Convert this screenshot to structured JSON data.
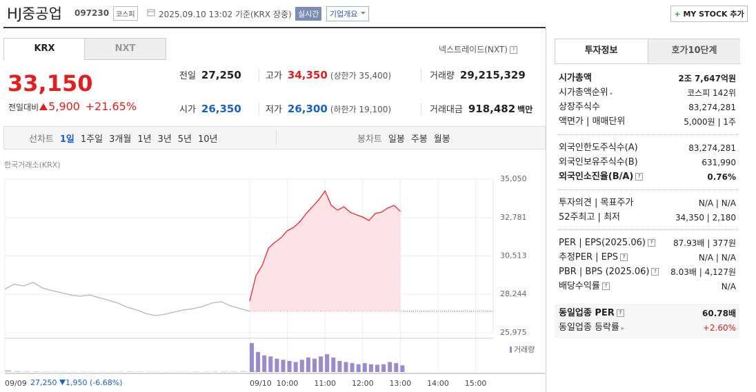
{
  "header": {
    "title": "HJ중공업",
    "code": "097230",
    "market": "코스피",
    "timestamp": "2025.09.10 13:02 기준(KRX 장중)",
    "realtime": "실시간",
    "company_button": "기업개요",
    "my_stock": "MY STOCK 추가"
  },
  "tabs": {
    "krx": "KRX",
    "nxt": "NXT",
    "nxt_link": "넥스트레이드(NXT)"
  },
  "quote": {
    "price": "33,150",
    "change_label": "전일대비",
    "change": "5,900",
    "change_pct": "+21.65%"
  },
  "stats": [
    {
      "label": "전일",
      "value": "27,250"
    },
    {
      "label": "고가",
      "value": "34,350",
      "note": "(상한가 35,400)"
    },
    {
      "label": "거래량",
      "value": "29,215,329"
    },
    {
      "label": "시가",
      "value": "26,350"
    },
    {
      "label": "저가",
      "value": "26,300",
      "note": "(하한가 19,100)"
    },
    {
      "label": "거래대금",
      "value": "918,482",
      "unit": "백만"
    }
  ],
  "periods": {
    "line_label": "선차트",
    "line": [
      "1일",
      "1주일",
      "3개월",
      "1년",
      "3년",
      "5년",
      "10년"
    ],
    "candle_label": "봉차트",
    "candle": [
      "일봉",
      "주봉",
      "월봉"
    ]
  },
  "chart_data": {
    "type": "line",
    "source": "한국거래소(KRX)",
    "ylim": [
      25975,
      35050
    ],
    "yticks": [
      {
        "value": 25975,
        "label": "25,975"
      },
      {
        "value": 28244,
        "label": "28,244"
      },
      {
        "value": 30513,
        "label": "30,513"
      },
      {
        "value": 32781,
        "label": "32,781"
      },
      {
        "value": 35050,
        "label": "35,050"
      }
    ],
    "xticks": [
      "09/09",
      "09/10",
      "10:00",
      "11:00",
      "12:00",
      "13:00",
      "14:00",
      "15:00"
    ],
    "reference_line": 27250,
    "series": [
      {
        "color": "#b5b5b5",
        "x": [
          "09:00",
          "09:15",
          "09:30",
          "09:45",
          "10:00",
          "10:15",
          "10:30",
          "10:45",
          "11:00",
          "11:15",
          "11:30",
          "11:45",
          "12:00",
          "12:15",
          "12:30",
          "12:45",
          "13:00",
          "13:15",
          "13:30",
          "13:45",
          "14:00",
          "14:15",
          "14:30",
          "14:45",
          "15:00",
          "15:15",
          "15:30"
        ],
        "values": [
          28550,
          28850,
          28740,
          28950,
          28620,
          28460,
          28340,
          28210,
          28130,
          28210,
          28050,
          27890,
          27730,
          27480,
          27320,
          27110,
          26990,
          27070,
          27200,
          27320,
          27400,
          27520,
          27730,
          27810,
          27560,
          27400,
          27250
        ]
      },
      {
        "color": "#f0262b",
        "fill": "#fde3e5",
        "x": [
          "09:00",
          "09:10",
          "09:20",
          "09:30",
          "09:40",
          "09:50",
          "10:00",
          "10:10",
          "10:20",
          "10:30",
          "10:40",
          "10:50",
          "11:00",
          "11:10",
          "11:20",
          "11:30",
          "11:40",
          "11:50",
          "12:00",
          "12:10",
          "12:20",
          "12:30",
          "12:40",
          "12:50",
          "13:00"
        ],
        "values": [
          27850,
          29350,
          29960,
          30980,
          31310,
          31590,
          32000,
          32200,
          32530,
          33020,
          33420,
          33830,
          34350,
          33500,
          33220,
          33420,
          33100,
          32940,
          32810,
          32610,
          33020,
          33100,
          33340,
          33500,
          33150
        ]
      }
    ],
    "volume": {
      "label": "거래량",
      "color": "#9a8ccc",
      "series": [
        [
          180000,
          90000,
          70000,
          60000,
          50000,
          45000,
          40000,
          35000,
          40000,
          30000,
          35000,
          30000,
          40000,
          50000,
          45000,
          40000,
          35000,
          30000,
          35000,
          30000,
          40000,
          45000,
          50000,
          60000,
          70000,
          90000,
          150000
        ],
        [
          2600000,
          1800000,
          1500000,
          1400000,
          1200000,
          1100000,
          1000000,
          900000,
          1100000,
          1300000,
          1200000,
          1400000,
          1600000,
          1300000,
          1000000,
          900000,
          800000,
          700000,
          800000,
          700000,
          650000,
          700000,
          900000,
          800000,
          600000
        ]
      ]
    }
  },
  "footer": {
    "close": "27,250",
    "change": "1,950",
    "pct": "(-6.68%)"
  },
  "sidebar": {
    "tabs": [
      "투자정보",
      "호가10단계"
    ],
    "sections": [
      [
        {
          "label": "시가총액",
          "value": "2조 7,647억원",
          "bold": true
        },
        {
          "label": "시가총액순위",
          "value": "코스피 142위",
          "arrow": true
        },
        {
          "label": "상장주식수",
          "value": "83,274,281"
        },
        {
          "label": "액면가 | 매매단위",
          "value": "5,000원 | 1주"
        }
      ],
      [
        {
          "label": "외국인한도주식수(A)",
          "value": "83,274,281"
        },
        {
          "label": "외국인보유주식수(B)",
          "value": "631,990"
        },
        {
          "label": "외국인소진율(B/A)",
          "value": "0.76%",
          "bold": true,
          "info": true
        }
      ],
      [
        {
          "label": "투자의견 | 목표주가",
          "value": "N/A | N/A"
        },
        {
          "label": "52주최고 | 최저",
          "value": "34,350 | 2,180"
        }
      ],
      [
        {
          "label": "PER | EPS(2025.06)",
          "value": "87.93배 | 377원",
          "info": true
        },
        {
          "label": "추정PER | EPS",
          "value": "N/A | N/A",
          "info": true
        },
        {
          "label": "PBR | BPS (2025.06)",
          "value": "8.03배 | 4,127원",
          "info": true
        },
        {
          "label": "배당수익률",
          "value": "N/A",
          "info": true
        }
      ],
      [
        {
          "label": "동일업종 PER",
          "value": "60.78배",
          "bold": true,
          "info": true
        },
        {
          "label": "동일업종 등락률",
          "value": "+2.60%",
          "arrow": true,
          "color": "#e0201f"
        }
      ]
    ]
  }
}
